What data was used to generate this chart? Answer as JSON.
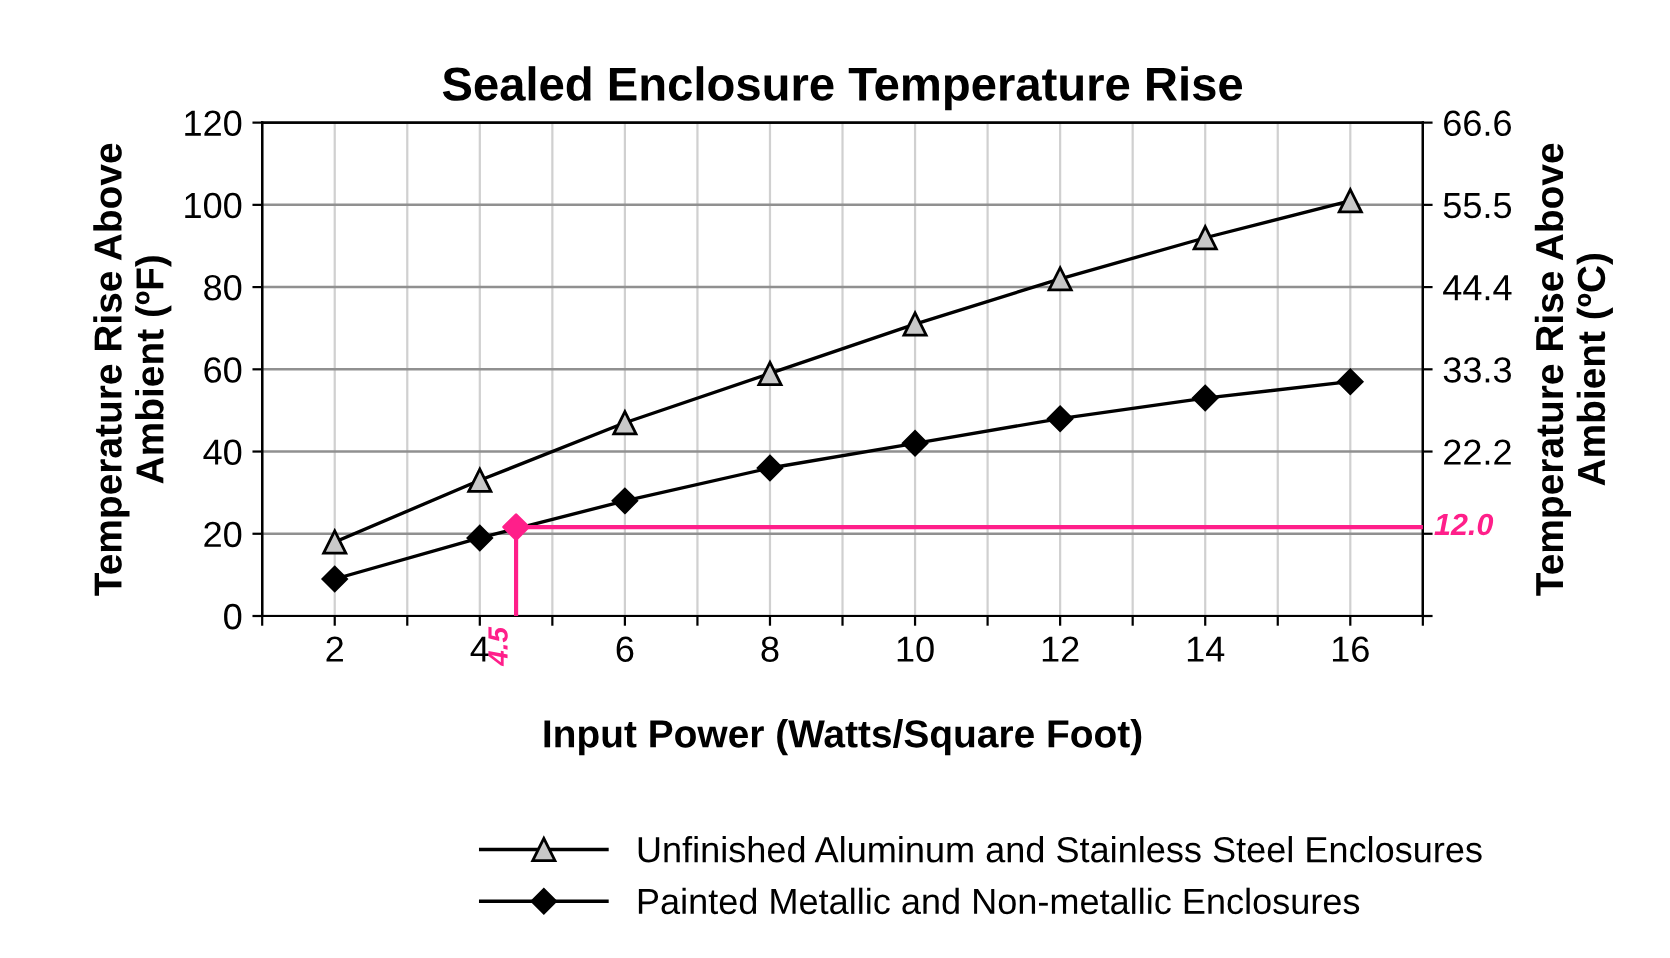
{
  "chart_data": {
    "type": "line",
    "title": "Sealed Enclosure Temperature Rise",
    "xlabel": "Input Power (Watts/Square Foot)",
    "ylabel": "Temperature Rise Above\nAmbient (ºF)",
    "y2label": "Temperature Rise Above\nAmbient (ºC)",
    "x": [
      2,
      4,
      6,
      8,
      10,
      12,
      14,
      16
    ],
    "series": [
      {
        "name": "Unfinished Aluminum and Stainless Steel Enclosures",
        "color": "#000000",
        "marker": "triangle",
        "values": [
          18,
          33,
          47,
          59,
          71,
          82,
          92,
          101
        ]
      },
      {
        "name": "Painted Metallic and Non-metallic Enclosures",
        "color": "#000000",
        "marker": "diamond",
        "values": [
          9,
          19,
          28,
          36,
          42,
          48,
          53,
          57
        ]
      },
      {
        "type": "scatter",
        "axis": "y2",
        "x": [
          4.5
        ],
        "color": "#ff1f8a",
        "marker": "diamond",
        "values": [
          12.0
        ]
      }
    ],
    "xlim": [
      1,
      17
    ],
    "xticks": [
      {
        "value": 1,
        "label": null
      },
      2,
      {
        "value": 3,
        "label": null
      },
      4,
      {
        "value": 5,
        "label": null
      },
      6,
      {
        "value": 7,
        "label": null
      },
      8,
      {
        "value": 9,
        "label": null
      },
      10,
      {
        "value": 11,
        "label": null
      },
      12,
      {
        "value": 13,
        "label": null
      },
      14,
      {
        "value": 15,
        "label": null
      },
      16,
      {
        "value": 17,
        "label": null
      }
    ],
    "ylim": [
      0,
      120
    ],
    "yticks": [
      0,
      20,
      40,
      60,
      80,
      100,
      120
    ],
    "y2lim": [
      0,
      66.6
    ],
    "y2ticks": [
      {
        "value": 0,
        "label": null
      },
      {
        "value": 11.1,
        "label": null
      },
      22.2,
      33.3,
      44.4,
      55.5,
      66.6
    ],
    "ref_lines": [
      {
        "axis": "x",
        "value": 4.5,
        "label": "4.5",
        "color": "#ff1f8a"
      },
      {
        "axis": "y2",
        "value": 12.0,
        "label": "12.0",
        "color": "#ff1f8a"
      }
    ],
    "grid": true,
    "legend": "bottom"
  }
}
